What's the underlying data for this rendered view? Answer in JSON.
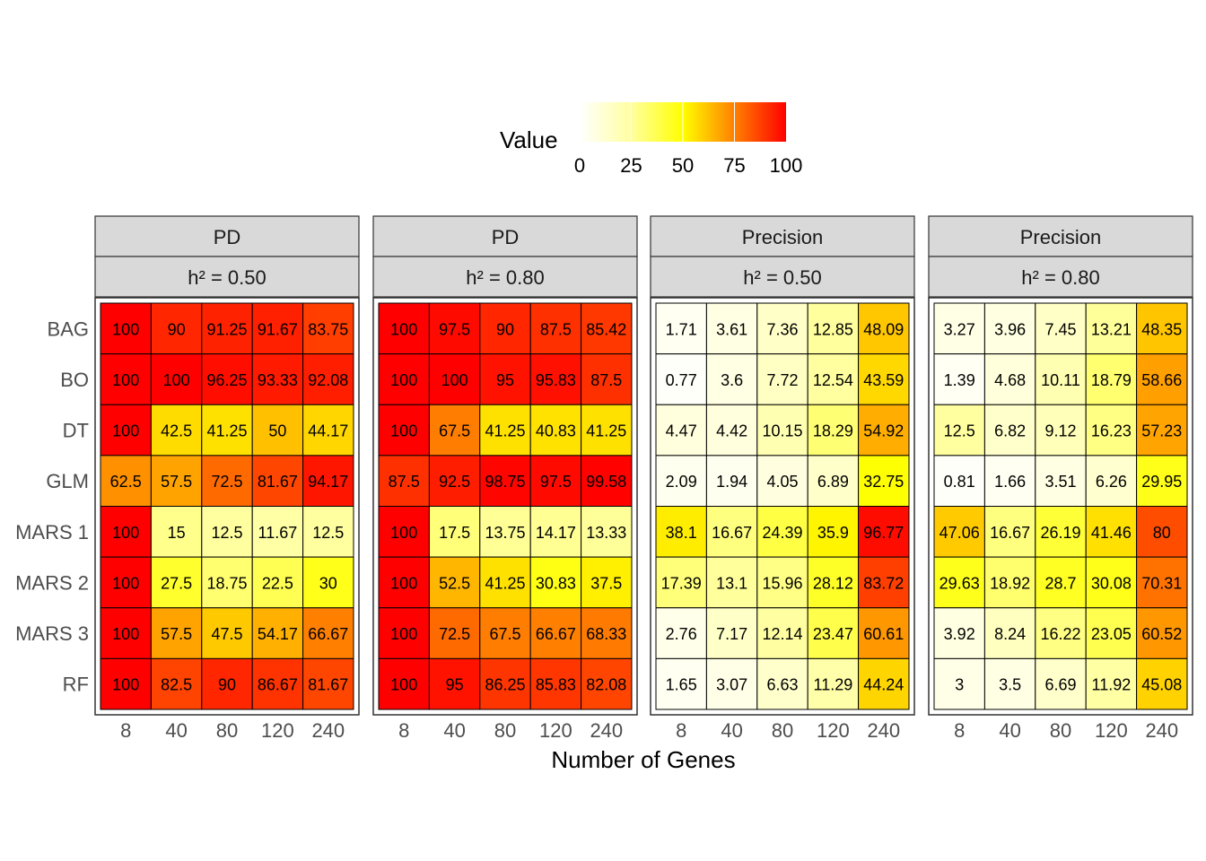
{
  "chart_data": {
    "type": "heatmap",
    "xlabel": "Number of Genes",
    "ylabel": "",
    "x_categories": [
      "8",
      "40",
      "80",
      "120",
      "240"
    ],
    "y_categories": [
      "BAG",
      "BO",
      "DT",
      "GLM",
      "MARS 1",
      "MARS 2",
      "MARS 3",
      "RF"
    ],
    "legend": {
      "title": "Value",
      "range": [
        0,
        100
      ],
      "ticks": [
        "0",
        "25",
        "50",
        "75",
        "100"
      ],
      "placement": "top",
      "colors": [
        "#ffffff",
        "#ffff00",
        "#ff8000",
        "#ff0000"
      ]
    },
    "panels": [
      {
        "strip_top": "PD",
        "strip_bottom": "h² = 0.50",
        "labels": [
          [
            "100",
            "90",
            "91.25",
            "91.67",
            "83.75"
          ],
          [
            "100",
            "100",
            "96.25",
            "93.33",
            "92.08"
          ],
          [
            "100",
            "42.5",
            "41.25",
            "50",
            "44.17"
          ],
          [
            "62.5",
            "57.5",
            "72.5",
            "81.67",
            "94.17"
          ],
          [
            "100",
            "15",
            "12.5",
            "11.67",
            "12.5"
          ],
          [
            "100",
            "27.5",
            "18.75",
            "22.5",
            "30"
          ],
          [
            "100",
            "57.5",
            "47.5",
            "54.17",
            "66.67"
          ],
          [
            "100",
            "82.5",
            "90",
            "86.67",
            "81.67"
          ]
        ]
      },
      {
        "strip_top": "PD",
        "strip_bottom": "h² = 0.80",
        "labels": [
          [
            "100",
            "97.5",
            "90",
            "87.5",
            "85.42"
          ],
          [
            "100",
            "100",
            "95",
            "95.83",
            "87.5"
          ],
          [
            "100",
            "67.5",
            "41.25",
            "40.83",
            "41.25"
          ],
          [
            "87.5",
            "92.5",
            "98.75",
            "97.5",
            "99.58"
          ],
          [
            "100",
            "17.5",
            "13.75",
            "14.17",
            "13.33"
          ],
          [
            "100",
            "52.5",
            "41.25",
            "30.83",
            "37.5"
          ],
          [
            "100",
            "72.5",
            "67.5",
            "66.67",
            "68.33"
          ],
          [
            "100",
            "95",
            "86.25",
            "85.83",
            "82.08"
          ]
        ]
      },
      {
        "strip_top": "Precision",
        "strip_bottom": "h² = 0.50",
        "labels": [
          [
            "1.71",
            "3.61",
            "7.36",
            "12.85",
            "48.09"
          ],
          [
            "0.77",
            "3.6",
            "7.72",
            "12.54",
            "43.59"
          ],
          [
            "4.47",
            "4.42",
            "10.15",
            "18.29",
            "54.92"
          ],
          [
            "2.09",
            "1.94",
            "4.05",
            "6.89",
            "32.75"
          ],
          [
            "38.1",
            "16.67",
            "24.39",
            "35.9",
            "96.77"
          ],
          [
            "17.39",
            "13.1",
            "15.96",
            "28.12",
            "83.72"
          ],
          [
            "2.76",
            "7.17",
            "12.14",
            "23.47",
            "60.61"
          ],
          [
            "1.65",
            "3.07",
            "6.63",
            "11.29",
            "44.24"
          ]
        ]
      },
      {
        "strip_top": "Precision",
        "strip_bottom": "h² = 0.80",
        "labels": [
          [
            "3.27",
            "3.96",
            "7.45",
            "13.21",
            "48.35"
          ],
          [
            "1.39",
            "4.68",
            "10.11",
            "18.79",
            "58.66"
          ],
          [
            "12.5",
            "6.82",
            "9.12",
            "16.23",
            "57.23"
          ],
          [
            "0.81",
            "1.66",
            "3.51",
            "6.26",
            "29.95"
          ],
          [
            "47.06",
            "16.67",
            "26.19",
            "41.46",
            "80"
          ],
          [
            "29.63",
            "18.92",
            "28.7",
            "30.08",
            "70.31"
          ],
          [
            "3.92",
            "8.24",
            "16.22",
            "23.05",
            "60.52"
          ],
          [
            "3",
            "3.5",
            "6.69",
            "11.92",
            "45.08"
          ]
        ]
      }
    ]
  }
}
